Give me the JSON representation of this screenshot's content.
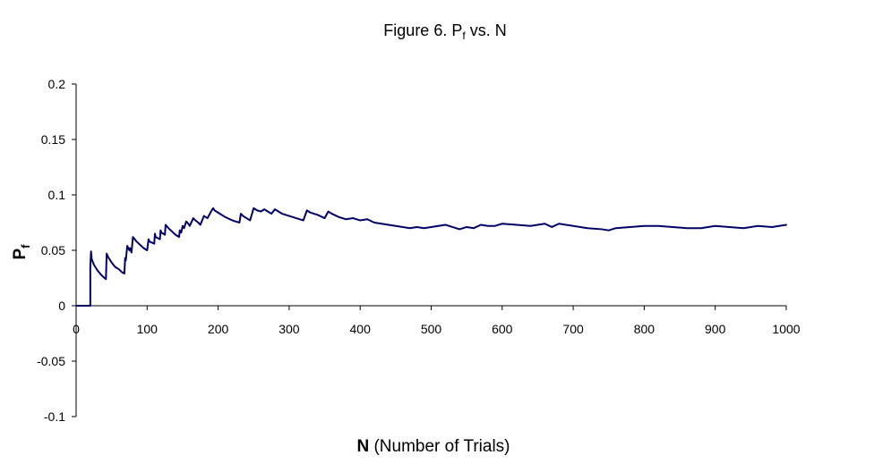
{
  "chart_data": {
    "type": "line",
    "title": {
      "prefix": "Figure 6.  P",
      "sub": "f",
      "suffix": " vs.  N"
    },
    "xlabel": {
      "bold": "N",
      "rest": " (Number of Trials)"
    },
    "ylabel": {
      "main": "P",
      "sub": "f"
    },
    "xlim": [
      0,
      1000
    ],
    "ylim": [
      -0.1,
      0.2
    ],
    "xticks": [
      "0",
      "100",
      "200",
      "300",
      "400",
      "500",
      "600",
      "700",
      "800",
      "900",
      "1000"
    ],
    "yticks": [
      "0.2",
      "0.15",
      "0.1",
      "0.05",
      "0",
      "-0.05",
      "-0.1"
    ],
    "grid": false,
    "legend": "none",
    "line_color": "#000066",
    "series": [
      {
        "x": [
          0,
          19,
          20,
          20,
          21,
          22,
          25,
          30,
          35,
          40,
          42,
          43,
          45,
          50,
          55,
          60,
          65,
          68,
          69,
          70,
          72,
          75,
          76,
          78,
          80,
          85,
          90,
          95,
          100,
          102,
          103,
          110,
          111,
          112,
          118,
          119,
          120,
          125,
          126,
          130,
          135,
          140,
          145,
          146,
          148,
          150,
          152,
          155,
          158,
          160,
          165,
          168,
          172,
          175,
          180,
          185,
          190,
          193,
          195,
          200,
          210,
          220,
          230,
          232,
          235,
          240,
          245,
          250,
          255,
          260,
          265,
          270,
          275,
          280,
          285,
          290,
          300,
          310,
          320,
          325,
          330,
          340,
          350,
          355,
          360,
          370,
          380,
          390,
          400,
          410,
          420,
          430,
          450,
          470,
          480,
          490,
          500,
          510,
          520,
          530,
          540,
          550,
          560,
          570,
          580,
          590,
          600,
          620,
          640,
          660,
          670,
          680,
          700,
          720,
          740,
          750,
          760,
          780,
          800,
          820,
          840,
          860,
          880,
          900,
          920,
          940,
          960,
          980,
          1000
        ],
        "y": [
          0,
          0,
          0,
          0.035,
          0.049,
          0.042,
          0.037,
          0.032,
          0.028,
          0.025,
          0.024,
          0.047,
          0.044,
          0.039,
          0.035,
          0.033,
          0.03,
          0.029,
          0.043,
          0.041,
          0.054,
          0.05,
          0.052,
          0.048,
          0.062,
          0.058,
          0.055,
          0.052,
          0.05,
          0.06,
          0.058,
          0.056,
          0.065,
          0.062,
          0.06,
          0.068,
          0.066,
          0.064,
          0.073,
          0.07,
          0.067,
          0.064,
          0.062,
          0.068,
          0.066,
          0.072,
          0.07,
          0.076,
          0.074,
          0.072,
          0.079,
          0.077,
          0.075,
          0.073,
          0.081,
          0.079,
          0.085,
          0.088,
          0.086,
          0.084,
          0.08,
          0.077,
          0.075,
          0.083,
          0.081,
          0.079,
          0.077,
          0.088,
          0.086,
          0.085,
          0.087,
          0.085,
          0.083,
          0.087,
          0.085,
          0.083,
          0.081,
          0.079,
          0.077,
          0.086,
          0.084,
          0.082,
          0.079,
          0.085,
          0.083,
          0.08,
          0.078,
          0.079,
          0.077,
          0.078,
          0.075,
          0.074,
          0.072,
          0.07,
          0.071,
          0.07,
          0.071,
          0.072,
          0.073,
          0.071,
          0.069,
          0.071,
          0.07,
          0.073,
          0.072,
          0.072,
          0.074,
          0.073,
          0.072,
          0.074,
          0.071,
          0.074,
          0.072,
          0.07,
          0.069,
          0.068,
          0.07,
          0.071,
          0.072,
          0.072,
          0.071,
          0.07,
          0.07,
          0.072,
          0.071,
          0.07,
          0.072,
          0.071,
          0.073
        ]
      }
    ]
  }
}
